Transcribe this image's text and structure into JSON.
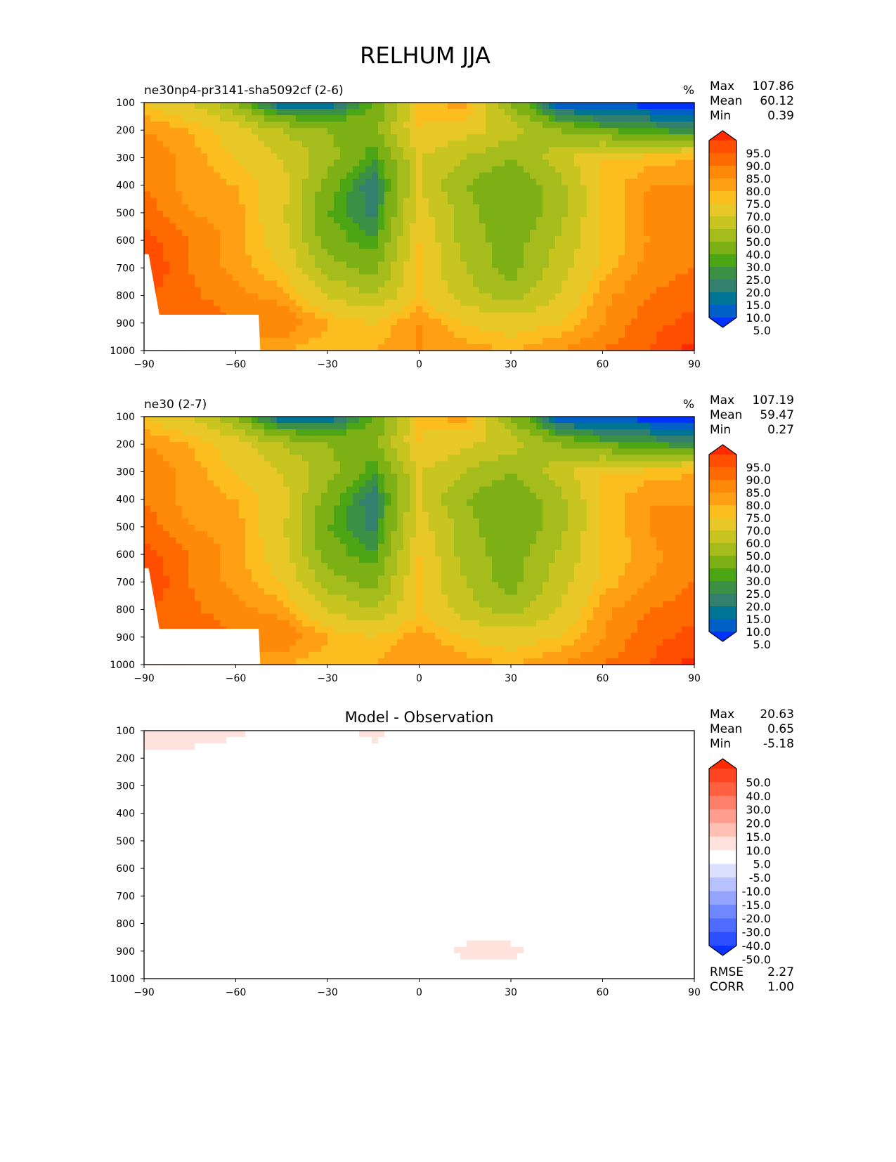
{
  "title": "RELHUM JJA",
  "chart_data": [
    {
      "type": "heatmap",
      "title": "ne30np4-pr3141-sha5092cf (2-6)",
      "units": "%",
      "stats": {
        "Max": "107.86",
        "Mean": "60.12",
        "Min": "0.39"
      },
      "x_ticks": [
        "−90",
        "−60",
        "−30",
        "0",
        "30",
        "60",
        "90"
      ],
      "y_ticks": [
        "100",
        "200",
        "300",
        "400",
        "500",
        "600",
        "700",
        "800",
        "900",
        "1000"
      ],
      "xlim": [
        -90,
        90
      ],
      "ylim": [
        1000,
        100
      ],
      "lat": [
        -90,
        -75,
        -60,
        -45,
        -30,
        -15,
        0,
        15,
        30,
        45,
        60,
        75,
        90
      ],
      "lev": [
        100,
        200,
        300,
        400,
        500,
        600,
        700,
        800,
        900,
        1000
      ],
      "values": [
        [
          70,
          60,
          40,
          5,
          10,
          30,
          70,
          80,
          40,
          5,
          3,
          2,
          1
        ],
        [
          80,
          75,
          65,
          50,
          40,
          35,
          70,
          65,
          55,
          40,
          30,
          25,
          20
        ],
        [
          85,
          78,
          70,
          60,
          45,
          25,
          60,
          50,
          40,
          55,
          70,
          72,
          75
        ],
        [
          85,
          78,
          75,
          65,
          35,
          15,
          60,
          40,
          30,
          45,
          70,
          80,
          80
        ],
        [
          88,
          80,
          78,
          62,
          30,
          18,
          65,
          45,
          30,
          45,
          70,
          82,
          85
        ],
        [
          92,
          85,
          78,
          65,
          35,
          25,
          70,
          45,
          35,
          50,
          70,
          80,
          85
        ],
        [
          96,
          85,
          78,
          70,
          45,
          35,
          70,
          50,
          35,
          55,
          72,
          82,
          85
        ],
        [
          null,
          86,
          82,
          78,
          60,
          50,
          70,
          55,
          45,
          60,
          78,
          85,
          88
        ],
        [
          null,
          90,
          85,
          85,
          75,
          70,
          80,
          70,
          65,
          70,
          80,
          88,
          92
        ],
        [
          null,
          null,
          null,
          75,
          72,
          75,
          80,
          78,
          75,
          80,
          85,
          90,
          97
        ]
      ],
      "colorbar": {
        "labels": [
          "95.0",
          "90.0",
          "85.0",
          "80.0",
          "75.0",
          "70.0",
          "60.0",
          "50.0",
          "40.0",
          "30.0",
          "25.0",
          "20.0",
          "15.0",
          "10.0",
          "5.0"
        ],
        "colors": [
          "#ff2a00",
          "#ff4e00",
          "#ff6a00",
          "#ff8a0a",
          "#ffa014",
          "#fcbe1e",
          "#e8c828",
          "#c8c420",
          "#a4bc1c",
          "#7cb014",
          "#4ca514",
          "#3c9046",
          "#34806e",
          "#007494",
          "#0060c8",
          "#0032ff"
        ]
      }
    },
    {
      "type": "heatmap",
      "title": "ne30 (2-7)",
      "units": "%",
      "stats": {
        "Max": "107.19",
        "Mean": "59.47",
        "Min": "0.27"
      },
      "x_ticks": [
        "−90",
        "−60",
        "−30",
        "0",
        "30",
        "60",
        "90"
      ],
      "y_ticks": [
        "100",
        "200",
        "300",
        "400",
        "500",
        "600",
        "700",
        "800",
        "900",
        "1000"
      ],
      "xlim": [
        -90,
        90
      ],
      "ylim": [
        1000,
        100
      ],
      "lat": [
        -90,
        -75,
        -60,
        -45,
        -30,
        -15,
        0,
        15,
        30,
        45,
        60,
        75,
        90
      ],
      "lev": [
        100,
        200,
        300,
        400,
        500,
        600,
        700,
        800,
        900,
        1000
      ],
      "values": [
        [
          70,
          60,
          40,
          5,
          10,
          30,
          70,
          80,
          40,
          5,
          3,
          2,
          1
        ],
        [
          80,
          75,
          65,
          50,
          40,
          35,
          70,
          62,
          55,
          40,
          30,
          25,
          20
        ],
        [
          85,
          78,
          70,
          60,
          45,
          25,
          60,
          50,
          40,
          55,
          70,
          72,
          75
        ],
        [
          85,
          78,
          75,
          65,
          35,
          15,
          60,
          40,
          30,
          45,
          70,
          80,
          78
        ],
        [
          88,
          80,
          78,
          62,
          30,
          18,
          65,
          45,
          30,
          45,
          70,
          80,
          85
        ],
        [
          92,
          85,
          78,
          65,
          35,
          25,
          70,
          45,
          35,
          50,
          70,
          78,
          85
        ],
        [
          96,
          85,
          78,
          70,
          45,
          35,
          70,
          50,
          35,
          55,
          72,
          80,
          85
        ],
        [
          null,
          86,
          82,
          78,
          60,
          50,
          70,
          55,
          45,
          60,
          78,
          85,
          88
        ],
        [
          null,
          90,
          85,
          85,
          75,
          70,
          78,
          70,
          65,
          70,
          80,
          88,
          92
        ],
        [
          null,
          null,
          null,
          75,
          72,
          75,
          80,
          78,
          75,
          80,
          85,
          90,
          97
        ]
      ],
      "colorbar": {
        "labels": [
          "95.0",
          "90.0",
          "85.0",
          "80.0",
          "75.0",
          "70.0",
          "60.0",
          "50.0",
          "40.0",
          "30.0",
          "25.0",
          "20.0",
          "15.0",
          "10.0",
          "5.0"
        ],
        "colors": [
          "#ff2a00",
          "#ff4e00",
          "#ff6a00",
          "#ff8a0a",
          "#ffa014",
          "#fcbe1e",
          "#e8c828",
          "#c8c420",
          "#a4bc1c",
          "#7cb014",
          "#4ca514",
          "#3c9046",
          "#34806e",
          "#007494",
          "#0060c8",
          "#0032ff"
        ]
      }
    },
    {
      "type": "heatmap",
      "title": "Model - Observation",
      "units": "",
      "stats": {
        "Max": "20.63",
        "Mean": "0.65",
        "Min": "-5.18"
      },
      "metrics": {
        "RMSE": "2.27",
        "CORR": "1.00"
      },
      "x_ticks": [
        "−90",
        "−60",
        "−30",
        "0",
        "30",
        "60",
        "90"
      ],
      "y_ticks": [
        "100",
        "200",
        "300",
        "400",
        "500",
        "600",
        "700",
        "800",
        "900",
        "1000"
      ],
      "xlim": [
        -90,
        90
      ],
      "ylim": [
        1000,
        100
      ],
      "lat": [
        -90,
        -75,
        -60,
        -45,
        -30,
        -15,
        0,
        15,
        30,
        45,
        60,
        75,
        90
      ],
      "lev": [
        100,
        200,
        300,
        400,
        500,
        600,
        700,
        800,
        900,
        1000
      ],
      "values": [
        [
          9,
          8,
          7,
          0,
          0,
          8,
          0,
          0,
          0,
          0,
          0,
          0,
          0
        ],
        [
          4,
          3,
          0,
          0,
          0,
          0,
          0,
          0,
          0,
          0,
          0,
          0,
          0
        ],
        [
          0,
          0,
          0,
          0,
          0,
          0,
          0,
          0,
          0,
          0,
          0,
          0,
          0
        ],
        [
          0,
          0,
          0,
          0,
          0,
          0,
          0,
          0,
          0,
          0,
          0,
          0,
          0
        ],
        [
          0,
          0,
          0,
          0,
          0,
          0,
          0,
          0,
          0,
          0,
          0,
          0,
          0
        ],
        [
          0,
          0,
          0,
          0,
          0,
          0,
          0,
          0,
          0,
          0,
          0,
          0,
          0
        ],
        [
          0,
          0,
          0,
          0,
          0,
          0,
          0,
          0,
          0,
          0,
          0,
          0,
          0
        ],
        [
          0,
          0,
          0,
          0,
          4,
          0,
          0,
          0,
          0,
          0,
          0,
          0,
          0
        ],
        [
          0,
          0,
          0,
          0,
          0,
          0,
          0,
          7,
          7,
          0,
          0,
          0,
          0
        ],
        [
          0,
          0,
          0,
          0,
          0,
          0,
          0,
          0,
          0,
          0,
          0,
          0,
          0
        ]
      ],
      "colorbar": {
        "labels": [
          "50.0",
          "40.0",
          "30.0",
          "20.0",
          "15.0",
          "10.0",
          "5.0",
          "-5.0",
          "-10.0",
          "-15.0",
          "-20.0",
          "-30.0",
          "-40.0",
          "-50.0"
        ],
        "colors": [
          "#ff2a00",
          "#ff4422",
          "#ff6040",
          "#ff806a",
          "#ff9e8e",
          "#ffc0b4",
          "#ffe2dc",
          "#ffffff",
          "#dce0ff",
          "#b8c2ff",
          "#94a4ff",
          "#7088ff",
          "#4e6cff",
          "#2c50ff",
          "#0a32ff"
        ]
      }
    }
  ]
}
